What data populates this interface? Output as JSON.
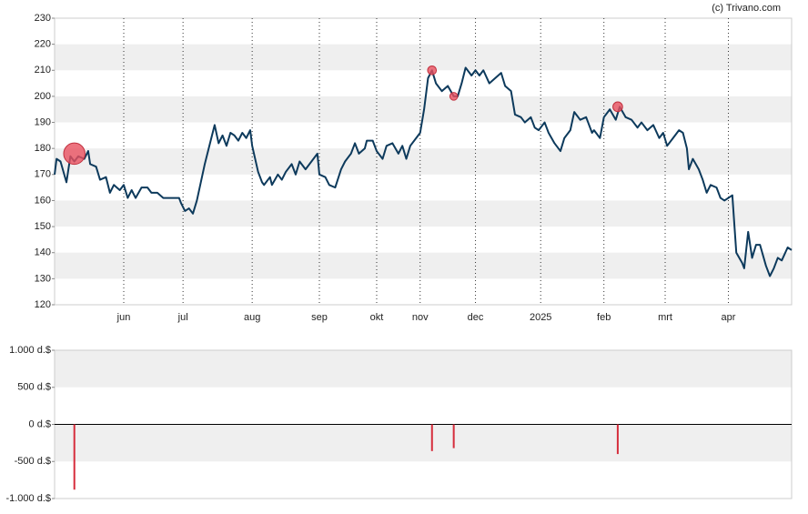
{
  "chart_data": [
    {
      "type": "line",
      "credit": "(c) Trivano.com",
      "color": "#0d3a5c",
      "bands": true,
      "vgrid": true,
      "xlim": [
        0,
        373
      ],
      "ylim": [
        120,
        230
      ],
      "yticks": [
        120,
        130,
        140,
        150,
        160,
        170,
        180,
        190,
        200,
        210,
        220,
        230
      ],
      "xticks": [
        {
          "value": 35,
          "label": "jun"
        },
        {
          "value": 65,
          "label": "jul"
        },
        {
          "value": 100,
          "label": "aug"
        },
        {
          "value": 134,
          "label": "sep"
        },
        {
          "value": 163,
          "label": "okt"
        },
        {
          "value": 185,
          "label": "nov"
        },
        {
          "value": 213,
          "label": "dec"
        },
        {
          "value": 246,
          "label": "2025"
        },
        {
          "value": 278,
          "label": "feb"
        },
        {
          "value": 309,
          "label": "mrt"
        },
        {
          "value": 341,
          "label": "apr"
        }
      ],
      "x": [
        0,
        1,
        3,
        6,
        8,
        10,
        12,
        15,
        17,
        18,
        21,
        23,
        26,
        28,
        30,
        33,
        35,
        37,
        39,
        41,
        44,
        47,
        49,
        52,
        55,
        59,
        63,
        64,
        66,
        68,
        70,
        72,
        74,
        76,
        78,
        81,
        83,
        85,
        87,
        89,
        91,
        93,
        95,
        97,
        99,
        100,
        103,
        105,
        106,
        109,
        110,
        113,
        115,
        117,
        120,
        122,
        124,
        127,
        129,
        131,
        133,
        134,
        137,
        139,
        142,
        145,
        147,
        150,
        152,
        154,
        157,
        158,
        161,
        163,
        166,
        168,
        171,
        174,
        176,
        178,
        180,
        183,
        185,
        187,
        189,
        191,
        193,
        196,
        199,
        202,
        204,
        206,
        208,
        211,
        213,
        215,
        217,
        220,
        223,
        226,
        228,
        231,
        233,
        236,
        238,
        241,
        243,
        245,
        248,
        250,
        253,
        256,
        258,
        261,
        263,
        266,
        269,
        272,
        273,
        276,
        278,
        281,
        284,
        286,
        289,
        292,
        295,
        297,
        300,
        303,
        306,
        308,
        310,
        313,
        316,
        318,
        320,
        321,
        323,
        326,
        328,
        330,
        332,
        335,
        337,
        339,
        341,
        343,
        345,
        348,
        349,
        351,
        353,
        355,
        357,
        360,
        362,
        364,
        366,
        368,
        371,
        373
      ],
      "values": [
        170,
        176,
        175,
        167,
        177,
        175,
        177,
        176,
        179,
        174,
        173,
        168,
        169,
        163,
        166,
        164,
        166,
        161,
        164,
        161,
        165,
        165,
        163,
        163,
        161,
        161,
        161,
        159,
        156,
        157,
        155,
        160,
        167,
        174,
        180,
        189,
        182,
        185,
        181,
        186,
        185,
        183,
        186,
        184,
        187,
        181,
        171,
        167,
        166,
        169,
        166,
        170,
        168,
        171,
        174,
        170,
        175,
        172,
        174,
        176,
        178,
        170,
        169,
        166,
        165,
        172,
        175,
        178,
        182,
        178,
        180,
        183,
        183,
        179,
        176,
        181,
        182,
        178,
        181,
        176,
        181,
        184,
        186,
        195,
        207,
        210,
        205,
        202,
        204,
        200,
        200,
        205,
        211,
        208,
        210,
        208,
        210,
        205,
        207,
        209,
        204,
        202,
        193,
        192,
        190,
        192,
        188,
        187,
        190,
        186,
        182,
        179,
        184,
        187,
        194,
        191,
        192,
        186,
        187,
        184,
        192,
        195,
        191,
        196,
        192,
        191,
        188,
        190,
        187,
        189,
        184,
        186,
        181,
        184,
        187,
        186,
        180,
        172,
        176,
        172,
        168,
        163,
        166,
        165,
        161,
        160,
        161,
        162,
        140,
        136,
        134,
        148,
        138,
        143,
        143,
        135,
        131,
        134,
        138,
        137,
        142,
        141
      ],
      "markers": {
        "color": "#e8505f",
        "x": [
          10,
          191,
          202,
          285
        ],
        "values": [
          178,
          210,
          200,
          196
        ]
      }
    },
    {
      "type": "bar",
      "color": "#d62d3c",
      "bands": true,
      "xlim": [
        0,
        373
      ],
      "ylim": [
        -1000,
        1000
      ],
      "yticks": [
        {
          "value": -1000,
          "label": "-1.000 d.$"
        },
        {
          "value": -500,
          "label": "-500 d.$"
        },
        {
          "value": 0,
          "label": "0 d.$"
        },
        {
          "value": 500,
          "label": "500 d.$"
        },
        {
          "value": 1000,
          "label": "1.000 d.$"
        }
      ],
      "x": [
        10,
        191,
        202,
        285
      ],
      "values": [
        -880,
        -360,
        -320,
        -400
      ]
    }
  ]
}
